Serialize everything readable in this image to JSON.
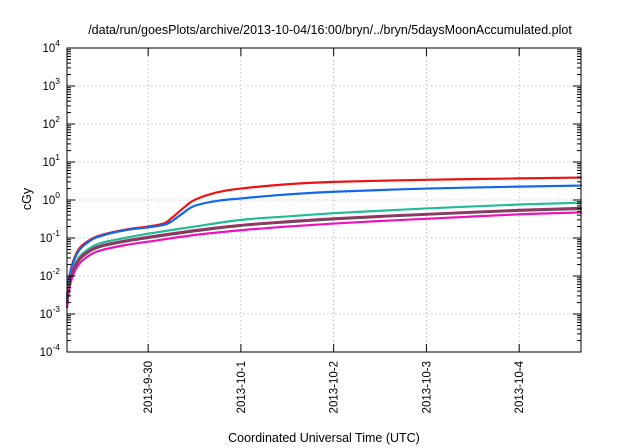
{
  "chart_data": {
    "type": "line",
    "title": "/data/run/goesPlots/archive/2013-10-04/16:00/bryn/../bryn/5daysMoonAccumulated.plot",
    "xlabel": "Coordinated Universal Time (UTC)",
    "ylabel": "cGy",
    "y_scale": "log",
    "ylim": [
      0.0001,
      10000
    ],
    "y_ticks": [
      {
        "base": "10",
        "exp": "-4",
        "value": 0.0001
      },
      {
        "base": "10",
        "exp": "-3",
        "value": 0.001
      },
      {
        "base": "10",
        "exp": "-2",
        "value": 0.01
      },
      {
        "base": "10",
        "exp": "-1",
        "value": 0.1
      },
      {
        "base": "10",
        "exp": "0",
        "value": 1
      },
      {
        "base": "10",
        "exp": "1",
        "value": 10
      },
      {
        "base": "10",
        "exp": "2",
        "value": 100
      },
      {
        "base": "10",
        "exp": "3",
        "value": 1000
      },
      {
        "base": "10",
        "exp": "4",
        "value": 10000
      }
    ],
    "xlim": [
      "2013-09-29 03:00",
      "2013-10-04 16:00"
    ],
    "x_ticks": [
      "2013-9-30",
      "2013-10-1",
      "2013-10-2",
      "2013-10-3",
      "2013-10-4"
    ],
    "grid": true,
    "legend": "none",
    "series": [
      {
        "color": "#ee1111",
        "x": [
          "2013-09-29 03:00",
          "2013-09-29 04:00",
          "2013-09-29 06:00",
          "2013-09-29 09:00",
          "2013-09-29 12:00",
          "2013-09-29 18:00",
          "2013-09-30 00:00",
          "2013-09-30 04:00",
          "2013-09-30 06:00",
          "2013-09-30 09:00",
          "2013-09-30 12:00",
          "2013-09-30 18:00",
          "2013-10-01 00:00",
          "2013-10-01 12:00",
          "2013-10-02 00:00",
          "2013-10-03 00:00",
          "2013-10-04 00:00",
          "2013-10-04 16:00"
        ],
        "values": [
          0.003,
          0.015,
          0.05,
          0.09,
          0.12,
          0.165,
          0.2,
          0.24,
          0.33,
          0.6,
          1.0,
          1.6,
          2.0,
          2.6,
          3.0,
          3.4,
          3.7,
          3.9
        ]
      },
      {
        "color": "#1166ee",
        "x": [
          "2013-09-29 03:00",
          "2013-09-29 04:00",
          "2013-09-29 06:00",
          "2013-09-29 09:00",
          "2013-09-29 12:00",
          "2013-09-29 18:00",
          "2013-09-30 00:00",
          "2013-09-30 04:00",
          "2013-09-30 06:00",
          "2013-09-30 09:00",
          "2013-09-30 12:00",
          "2013-09-30 18:00",
          "2013-10-01 00:00",
          "2013-10-01 12:00",
          "2013-10-02 00:00",
          "2013-10-03 00:00",
          "2013-10-04 00:00",
          "2013-10-04 16:00"
        ],
        "values": [
          0.003,
          0.014,
          0.045,
          0.085,
          0.115,
          0.16,
          0.19,
          0.22,
          0.27,
          0.45,
          0.7,
          0.95,
          1.1,
          1.4,
          1.65,
          2.0,
          2.25,
          2.4
        ]
      },
      {
        "color": "#22bb99",
        "x": [
          "2013-09-29 03:00",
          "2013-09-29 04:00",
          "2013-09-29 06:00",
          "2013-09-29 09:00",
          "2013-09-29 12:00",
          "2013-09-29 18:00",
          "2013-09-30 00:00",
          "2013-09-30 12:00",
          "2013-10-01 00:00",
          "2013-10-01 12:00",
          "2013-10-02 00:00",
          "2013-10-02 12:00",
          "2013-10-03 00:00",
          "2013-10-04 00:00",
          "2013-10-04 16:00"
        ],
        "values": [
          0.0025,
          0.01,
          0.03,
          0.055,
          0.075,
          0.1,
          0.13,
          0.2,
          0.3,
          0.37,
          0.45,
          0.52,
          0.6,
          0.76,
          0.85
        ]
      },
      {
        "color": "#555555",
        "x": [
          "2013-09-29 03:00",
          "2013-09-29 04:00",
          "2013-09-29 06:00",
          "2013-09-29 09:00",
          "2013-09-29 12:00",
          "2013-09-29 18:00",
          "2013-09-30 00:00",
          "2013-09-30 12:00",
          "2013-10-01 00:00",
          "2013-10-01 12:00",
          "2013-10-02 00:00",
          "2013-10-02 12:00",
          "2013-10-03 00:00",
          "2013-10-04 00:00",
          "2013-10-04 16:00"
        ],
        "values": [
          0.002,
          0.009,
          0.025,
          0.045,
          0.06,
          0.08,
          0.1,
          0.15,
          0.21,
          0.26,
          0.31,
          0.36,
          0.41,
          0.52,
          0.58
        ]
      },
      {
        "color": "#993366",
        "x": [
          "2013-09-29 03:00",
          "2013-09-29 04:00",
          "2013-09-29 06:00",
          "2013-09-29 09:00",
          "2013-09-29 12:00",
          "2013-09-29 18:00",
          "2013-09-30 00:00",
          "2013-09-30 12:00",
          "2013-10-01 00:00",
          "2013-10-01 12:00",
          "2013-10-02 00:00",
          "2013-10-02 12:00",
          "2013-10-03 00:00",
          "2013-10-04 00:00",
          "2013-10-04 16:00"
        ],
        "values": [
          0.002,
          0.0095,
          0.027,
          0.048,
          0.064,
          0.085,
          0.107,
          0.16,
          0.22,
          0.275,
          0.33,
          0.38,
          0.43,
          0.55,
          0.62
        ]
      },
      {
        "color": "#ee11bb",
        "x": [
          "2013-09-29 03:00",
          "2013-09-29 04:00",
          "2013-09-29 06:00",
          "2013-09-29 09:00",
          "2013-09-29 12:00",
          "2013-09-29 18:00",
          "2013-09-30 00:00",
          "2013-09-30 12:00",
          "2013-10-01 00:00",
          "2013-10-01 12:00",
          "2013-10-02 00:00",
          "2013-10-02 12:00",
          "2013-10-03 00:00",
          "2013-10-04 00:00",
          "2013-10-04 16:00"
        ],
        "values": [
          0.0015,
          0.007,
          0.02,
          0.036,
          0.048,
          0.065,
          0.08,
          0.12,
          0.16,
          0.2,
          0.24,
          0.28,
          0.32,
          0.42,
          0.47
        ]
      }
    ]
  }
}
